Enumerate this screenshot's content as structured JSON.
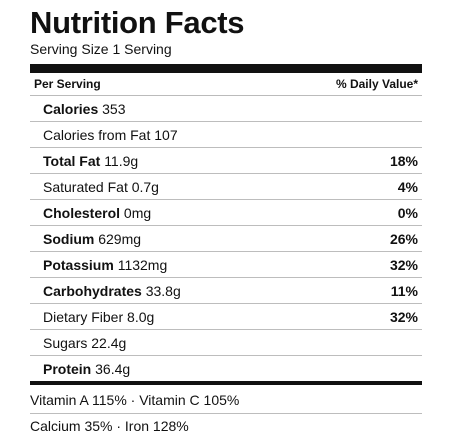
{
  "title": "Nutrition Facts",
  "serving": "Serving Size 1 Serving",
  "header": {
    "per_serving": "Per Serving",
    "daily_value": "% Daily Value*"
  },
  "nutrients": [
    {
      "name": "Calories",
      "amount": "353",
      "bold": true,
      "pct": ""
    },
    {
      "name": "Calories from Fat",
      "amount": "107",
      "bold": false,
      "pct": ""
    },
    {
      "name": "Total Fat",
      "amount": "11.9g",
      "bold": true,
      "pct": "18%"
    },
    {
      "name": "Saturated Fat",
      "amount": "0.7g",
      "bold": false,
      "pct": "4%"
    },
    {
      "name": "Cholesterol",
      "amount": "0mg",
      "bold": true,
      "pct": "0%"
    },
    {
      "name": "Sodium",
      "amount": "629mg",
      "bold": true,
      "pct": "26%"
    },
    {
      "name": "Potassium",
      "amount": "1132mg",
      "bold": true,
      "pct": "32%"
    },
    {
      "name": "Carbohydrates",
      "amount": "33.8g",
      "bold": true,
      "pct": "11%"
    },
    {
      "name": "Dietary Fiber",
      "amount": "8.0g",
      "bold": false,
      "pct": "32%"
    },
    {
      "name": "Sugars",
      "amount": "22.4g",
      "bold": false,
      "pct": ""
    },
    {
      "name": "Protein",
      "amount": "36.4g",
      "bold": true,
      "pct": ""
    }
  ],
  "vitamins": {
    "line1": "Vitamin A 115% · Vitamin C 105%",
    "line2": "Calcium 35% · Iron 128%"
  }
}
